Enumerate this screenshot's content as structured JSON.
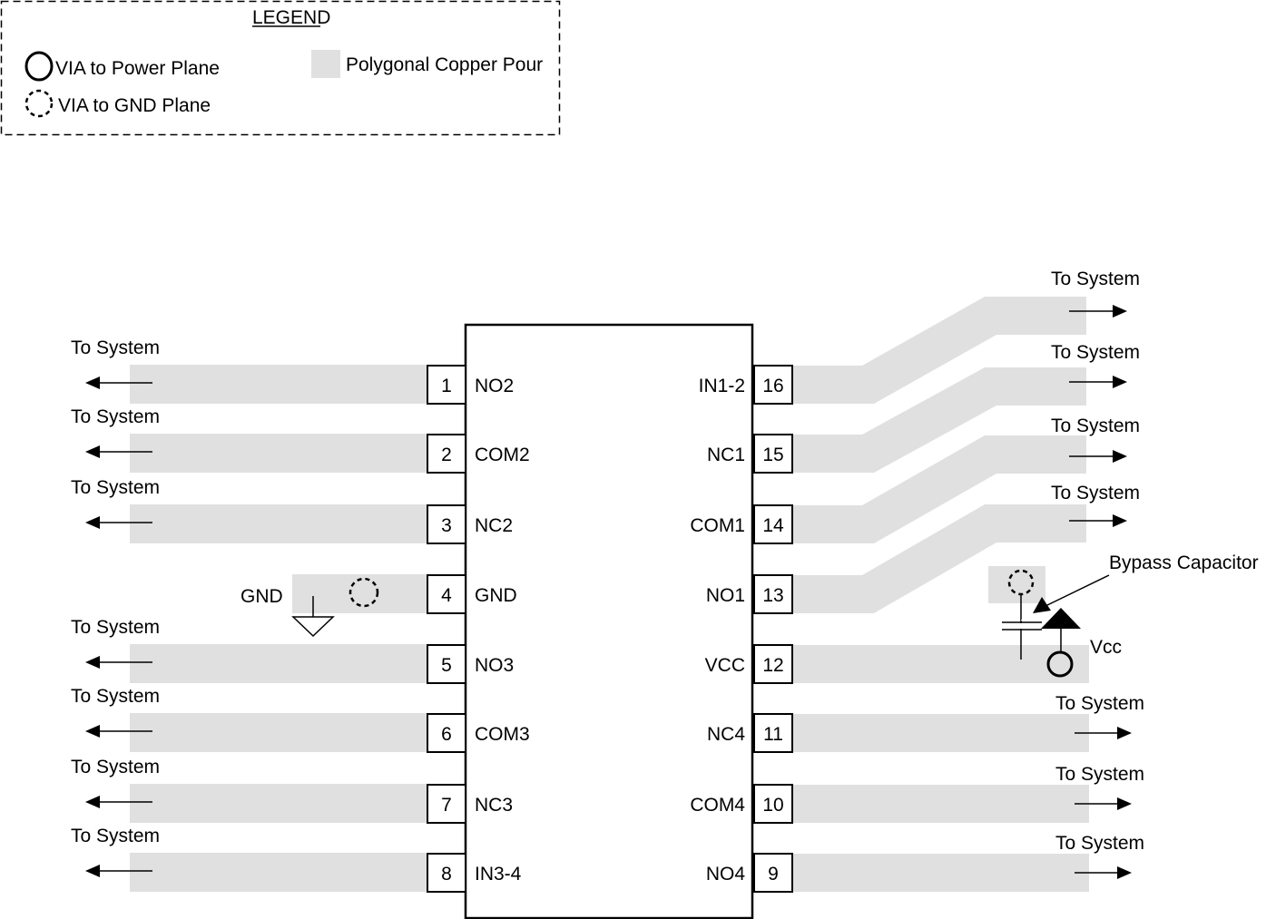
{
  "legend": {
    "title": "LEGEND",
    "power_via_label": "VIA to Power Plane",
    "gnd_via_label": "VIA to GND Plane",
    "copper_pour_label": "Polygonal Copper Pour"
  },
  "colors": {
    "copper_pour": "#e0e0e0",
    "line": "#000000"
  },
  "left_pins": [
    {
      "number": "1",
      "name": "NO2",
      "dest": "To System"
    },
    {
      "number": "2",
      "name": "COM2",
      "dest": "To System"
    },
    {
      "number": "3",
      "name": "NC2",
      "dest": "To System"
    },
    {
      "number": "4",
      "name": "GND",
      "dest": "GND"
    },
    {
      "number": "5",
      "name": "NO3",
      "dest": "To System"
    },
    {
      "number": "6",
      "name": "COM3",
      "dest": "To System"
    },
    {
      "number": "7",
      "name": "NC3",
      "dest": "To System"
    },
    {
      "number": "8",
      "name": "IN3-4",
      "dest": "To System"
    }
  ],
  "right_pins": [
    {
      "number": "16",
      "name": "IN1-2",
      "dest": "To System"
    },
    {
      "number": "15",
      "name": "NC1",
      "dest": "To System"
    },
    {
      "number": "14",
      "name": "COM1",
      "dest": "To System"
    },
    {
      "number": "13",
      "name": "NO1",
      "dest": "To System"
    },
    {
      "number": "12",
      "name": "VCC",
      "dest": "Vcc"
    },
    {
      "number": "11",
      "name": "NC4",
      "dest": "To System"
    },
    {
      "number": "10",
      "name": "COM4",
      "dest": "To System"
    },
    {
      "number": "9",
      "name": "NO4",
      "dest": "To System"
    }
  ],
  "bypass": {
    "label": "Bypass Capacitor",
    "vcc_label": "Vcc"
  },
  "icons": {
    "power_via": "solid-circle",
    "gnd_via": "dashed-circle",
    "ground": "ground-symbol",
    "arrow": "arrow"
  }
}
